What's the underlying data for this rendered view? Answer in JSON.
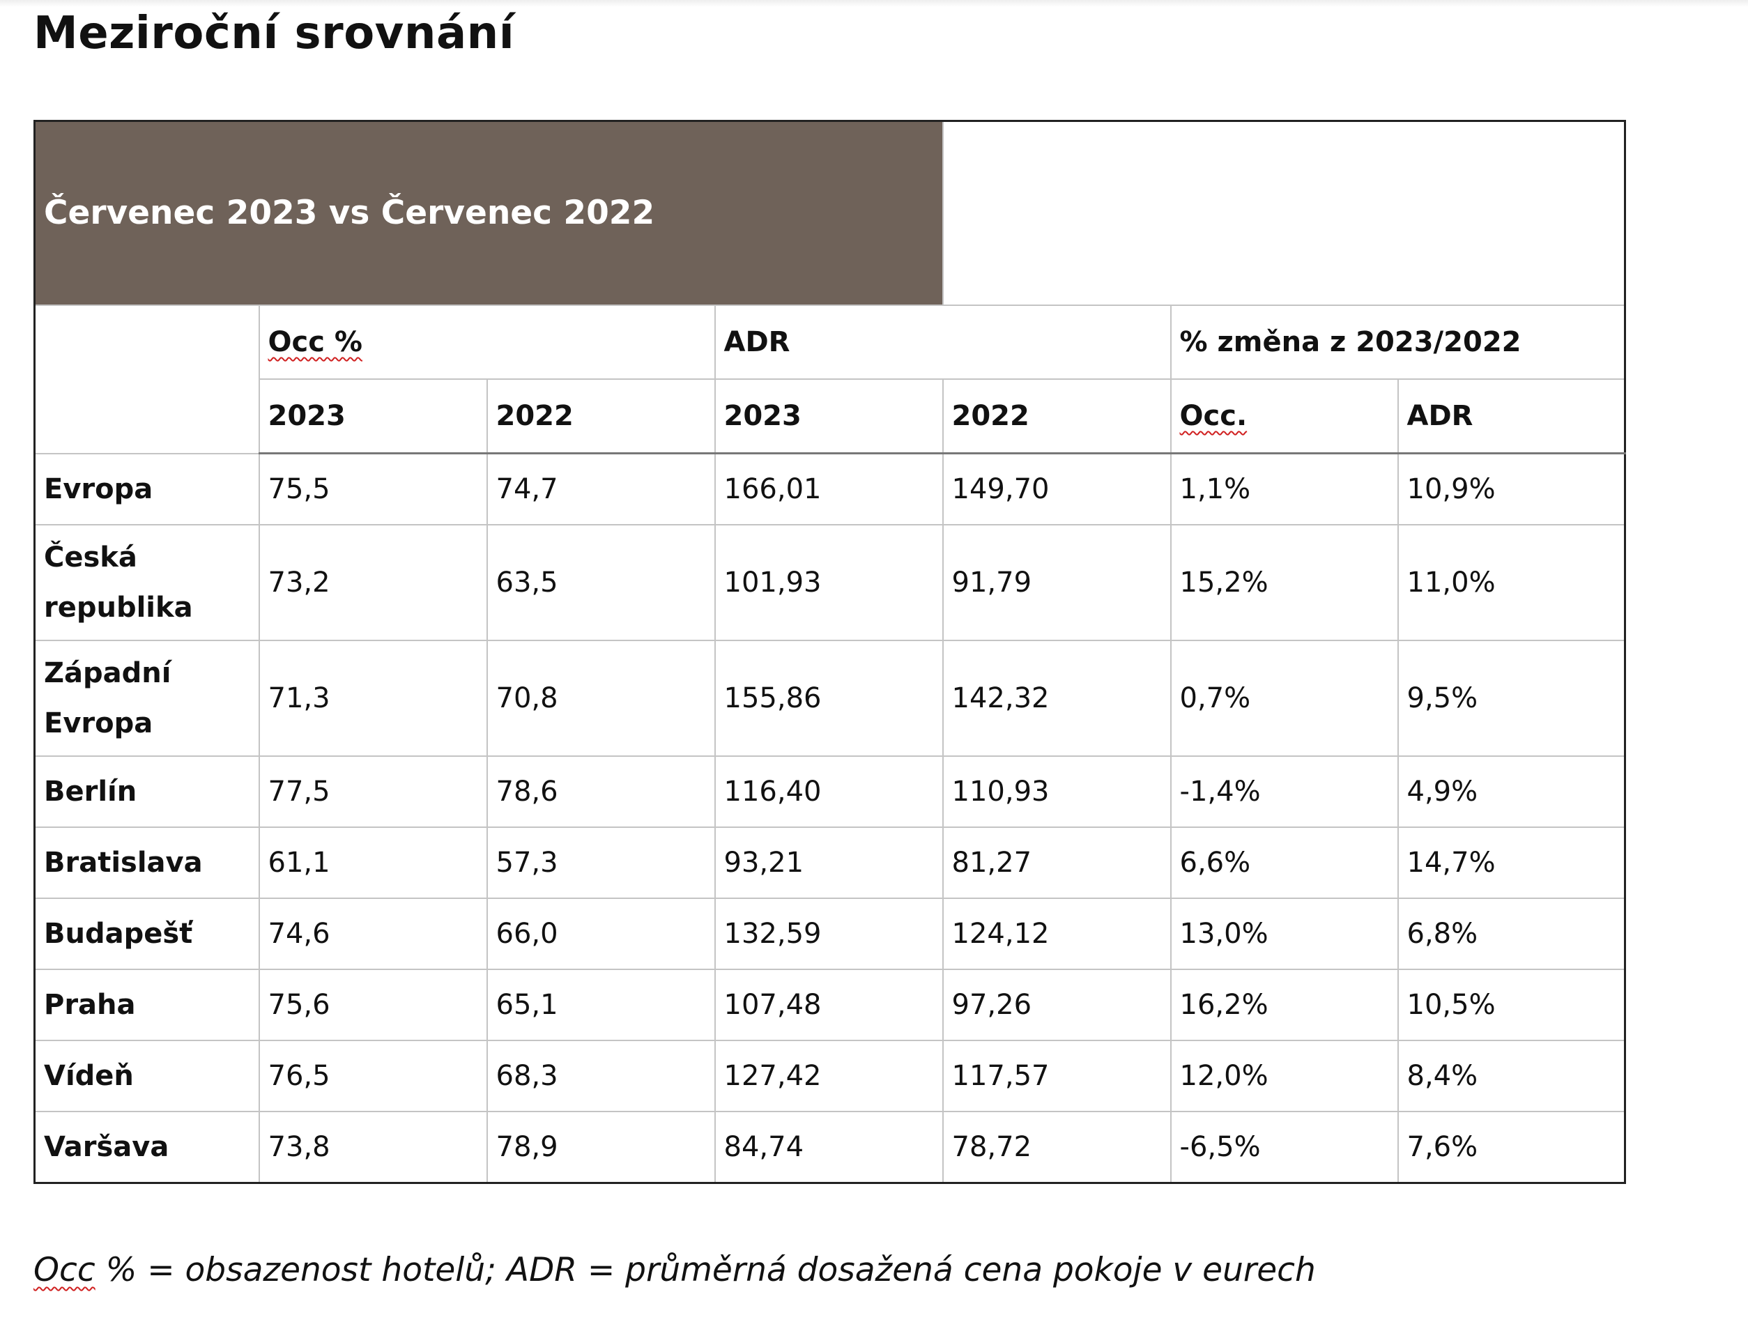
{
  "page_title": "Meziroční srovnání",
  "table": {
    "banner": "Červenec 2023 vs Červenec 2022",
    "group_headers": {
      "occ": "Occ %",
      "adr": "ADR",
      "change": "% změna z 2023/2022"
    },
    "sub_headers": [
      "2023",
      "2022",
      "2023",
      "2022",
      "Occ.",
      "ADR"
    ],
    "rows": [
      {
        "region": "Evropa",
        "occ_2023": "75,5",
        "occ_2022": "74,7",
        "adr_2023": "166,01",
        "adr_2022": "149,70",
        "chg_occ": "1,1%",
        "chg_adr": "10,9%"
      },
      {
        "region": "Česká republika",
        "occ_2023": "73,2",
        "occ_2022": "63,5",
        "adr_2023": "101,93",
        "adr_2022": "91,79",
        "chg_occ": "15,2%",
        "chg_adr": "11,0%"
      },
      {
        "region": "Západní Evropa",
        "occ_2023": "71,3",
        "occ_2022": "70,8",
        "adr_2023": "155,86",
        "adr_2022": "142,32",
        "chg_occ": "0,7%",
        "chg_adr": "9,5%"
      },
      {
        "region": "Berlín",
        "occ_2023": "77,5",
        "occ_2022": "78,6",
        "adr_2023": "116,40",
        "adr_2022": "110,93",
        "chg_occ": "-1,4%",
        "chg_adr": "4,9%"
      },
      {
        "region": "Bratislava",
        "occ_2023": "61,1",
        "occ_2022": "57,3",
        "adr_2023": "93,21",
        "adr_2022": "81,27",
        "chg_occ": "6,6%",
        "chg_adr": "14,7%"
      },
      {
        "region": "Budapešť",
        "occ_2023": "74,6",
        "occ_2022": "66,0",
        "adr_2023": "132,59",
        "adr_2022": "124,12",
        "chg_occ": "13,0%",
        "chg_adr": "6,8%"
      },
      {
        "region": "Praha",
        "occ_2023": "75,6",
        "occ_2022": "65,1",
        "adr_2023": "107,48",
        "adr_2022": "97,26",
        "chg_occ": "16,2%",
        "chg_adr": "10,5%"
      },
      {
        "region": "Vídeň",
        "occ_2023": "76,5",
        "occ_2022": "68,3",
        "adr_2023": "127,42",
        "adr_2022": "117,57",
        "chg_occ": "12,0%",
        "chg_adr": "8,4%"
      },
      {
        "region": "Varšava",
        "occ_2023": "73,8",
        "occ_2022": "78,9",
        "adr_2023": "84,74",
        "adr_2022": "78,72",
        "chg_occ": "-6,5%",
        "chg_adr": "7,6%"
      }
    ]
  },
  "footnote": {
    "occ_term": "Occ",
    "rest": " % = obsazenost hotelů; ADR = průměrná dosažená cena pokoje v eurech"
  },
  "colors": {
    "banner_bg": "#6f6259",
    "banner_text": "#ffffff",
    "spellcheck_underline": "#d02020"
  }
}
